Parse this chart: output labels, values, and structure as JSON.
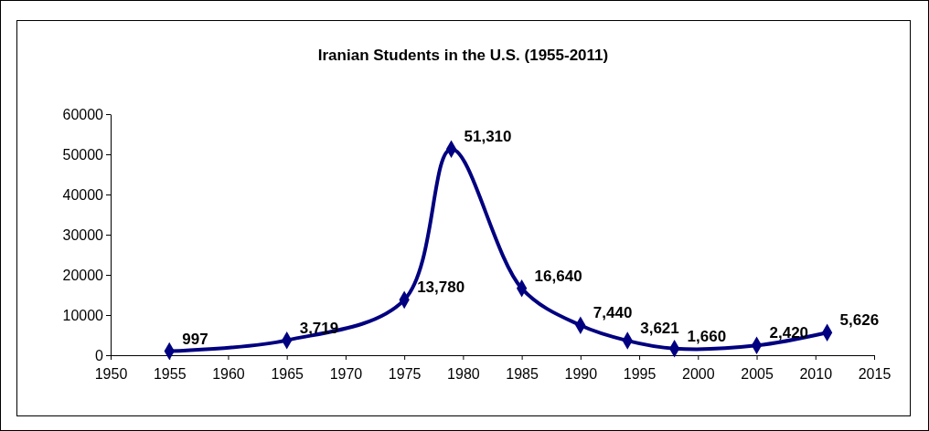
{
  "chart_data": {
    "type": "line",
    "title": "Iranian Students in the U.S. (1955-2011)",
    "x": [
      1955,
      1965,
      1975,
      1979,
      1985,
      1990,
      1994,
      1998,
      2005,
      2011
    ],
    "series": [
      {
        "color": "#000080",
        "values": [
          997,
          3719,
          13780,
          51310,
          16640,
          7440,
          3621,
          1660,
          2420,
          5626
        ]
      }
    ],
    "xlim": [
      1950,
      2015
    ],
    "xticks": [
      1950,
      1955,
      1960,
      1965,
      1970,
      1975,
      1980,
      1985,
      1990,
      1995,
      2000,
      2005,
      2010,
      2015
    ],
    "ylim": [
      0,
      60000
    ],
    "yticks": [
      0,
      10000,
      20000,
      30000,
      40000,
      50000,
      60000
    ],
    "value_labels": [
      "997",
      "3,719",
      "13,780",
      "51,310",
      "16,640",
      "7,440",
      "3,621",
      "1,660",
      "2,420",
      "5,626"
    ],
    "marker": "diamond",
    "line_style": "solid",
    "grid": false
  }
}
